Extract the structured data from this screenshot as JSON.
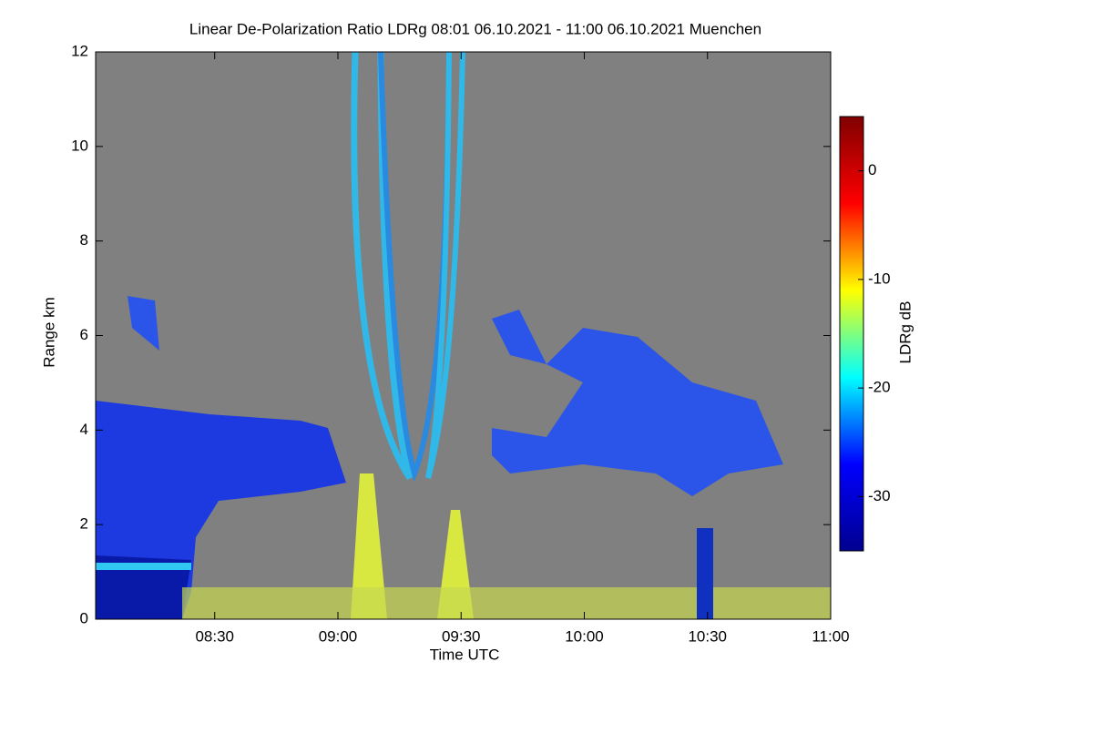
{
  "chart_data": {
    "type": "heatmap",
    "title": "Linear De-Polarization Ratio LDRg   08:01 06.10.2021 - 11:00 06.10.2021 Muenchen",
    "x_label": "Time UTC",
    "y_label": "Range km",
    "xlim": [
      "08:01",
      "11:00"
    ],
    "xticks": [
      "08:30",
      "09:00",
      "09:30",
      "10:00",
      "10:30",
      "11:00"
    ],
    "ylim": [
      0,
      12
    ],
    "yticks": [
      0,
      2,
      4,
      6,
      8,
      10,
      12
    ],
    "colorbar": {
      "label": "LDRg dB",
      "clim": [
        -35,
        5
      ],
      "ticks": [
        0,
        -10,
        -20,
        -30
      ],
      "colors": [
        "#00008f",
        "#0000ff",
        "#00ffff",
        "#ffff00",
        "#ff0000",
        "#800000"
      ]
    },
    "background": "#808080"
  }
}
